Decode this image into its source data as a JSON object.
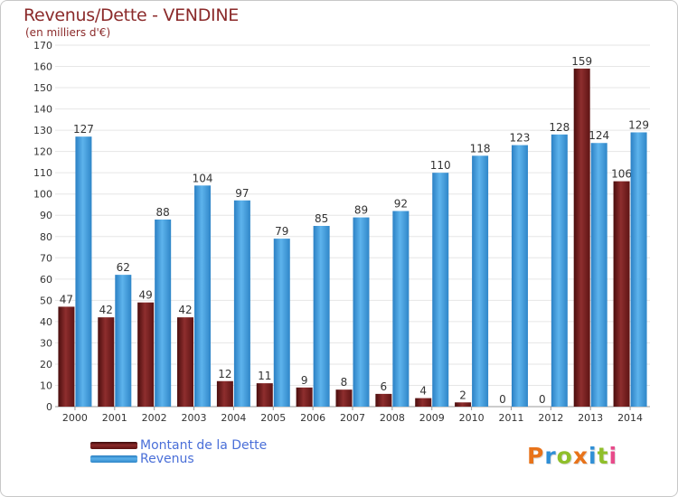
{
  "chart_data": {
    "type": "bar",
    "title": "Revenus/Dette - VENDINE",
    "subtitle": "(en milliers d'€)",
    "categories": [
      "2000",
      "2001",
      "2002",
      "2003",
      "2004",
      "2005",
      "2006",
      "2007",
      "2008",
      "2009",
      "2010",
      "2011",
      "2012",
      "2013",
      "2014"
    ],
    "series": [
      {
        "name": "Montant de la Dette",
        "color": "#7a1f1f",
        "values": [
          47,
          42,
          49,
          42,
          12,
          11,
          9,
          8,
          6,
          4,
          2,
          0,
          0,
          159,
          106
        ]
      },
      {
        "name": "Revenus",
        "color": "#3a9ad9",
        "values": [
          127,
          62,
          88,
          104,
          97,
          79,
          85,
          89,
          92,
          110,
          118,
          123,
          128,
          124,
          129
        ]
      }
    ],
    "ylim": [
      0,
      170
    ],
    "yticks": [
      0,
      10,
      20,
      30,
      40,
      50,
      60,
      70,
      80,
      90,
      100,
      110,
      120,
      130,
      140,
      150,
      160,
      170
    ],
    "grid": true,
    "legend_position": "bottom-left"
  },
  "logo": {
    "text": "Proxiti"
  },
  "colors": {
    "accent": "#8b2a2a",
    "legend_text": "#4a6fd8",
    "grid": "#e6e6e6"
  }
}
